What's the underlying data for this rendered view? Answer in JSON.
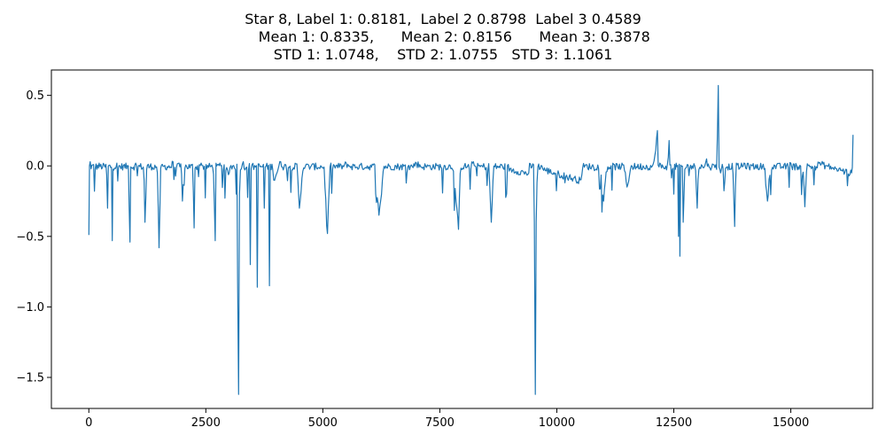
{
  "chart_data": {
    "type": "line",
    "title_lines": [
      "Star 8, Label 1: 0.8181,  Label 2 0.8798  Label 3 0.4589",
      "     Mean 1: 0.8335,      Mean 2: 0.8156      Mean 3: 0.3878",
      "STD 1: 1.0748,    STD 2: 1.0755   STD 3: 1.1061"
    ],
    "xlabel": "",
    "ylabel": "",
    "xlim": [
      -800,
      16750
    ],
    "ylim": [
      -1.72,
      0.68
    ],
    "grid": false,
    "line_color": "#1f77b4",
    "x_ticks": [
      0,
      2500,
      5000,
      7500,
      10000,
      12500,
      15000
    ],
    "x_tick_labels": [
      "0",
      "2500",
      "5000",
      "7500",
      "10000",
      "12500",
      "15000"
    ],
    "y_ticks": [
      0.5,
      0.0,
      -0.5,
      -1.0,
      -1.5
    ],
    "y_tick_labels": [
      "0.5",
      "0.0",
      "−0.5",
      "−1.0",
      "−1.5"
    ],
    "x_max": 16330,
    "keypoints": [
      [
        0,
        -0.49
      ],
      [
        30,
        0.03
      ],
      [
        120,
        -0.18
      ],
      [
        220,
        0.02
      ],
      [
        400,
        -0.3
      ],
      [
        500,
        -0.53
      ],
      [
        600,
        0.02
      ],
      [
        880,
        -0.54
      ],
      [
        1000,
        0.02
      ],
      [
        1200,
        -0.4
      ],
      [
        1500,
        -0.58
      ],
      [
        1800,
        0.03
      ],
      [
        2000,
        -0.25
      ],
      [
        2250,
        -0.44
      ],
      [
        2400,
        0.02
      ],
      [
        2700,
        -0.53
      ],
      [
        2800,
        0.02
      ],
      [
        3000,
        -0.05
      ],
      [
        3150,
        -0.2
      ],
      [
        3180,
        -0.82
      ],
      [
        3200,
        -1.62
      ],
      [
        3220,
        -0.2
      ],
      [
        3300,
        0.03
      ],
      [
        3450,
        -0.7
      ],
      [
        3600,
        -0.86
      ],
      [
        3750,
        -0.3
      ],
      [
        3860,
        -0.85
      ],
      [
        3950,
        -0.1
      ],
      [
        4100,
        0.03
      ],
      [
        4500,
        -0.3
      ],
      [
        5100,
        -0.48
      ],
      [
        5500,
        0.02
      ],
      [
        6200,
        -0.35
      ],
      [
        7000,
        0.02
      ],
      [
        7900,
        -0.45
      ],
      [
        8200,
        0.02
      ],
      [
        8600,
        -0.4
      ],
      [
        9000,
        -0.02
      ],
      [
        9400,
        -0.05
      ],
      [
        9520,
        -0.4
      ],
      [
        9540,
        -1.62
      ],
      [
        9560,
        -0.4
      ],
      [
        9700,
        -0.02
      ],
      [
        10500,
        -0.1
      ],
      [
        11000,
        -0.25
      ],
      [
        11500,
        -0.15
      ],
      [
        12150,
        0.25
      ],
      [
        12200,
        0.02
      ],
      [
        12400,
        0.18
      ],
      [
        12500,
        -0.2
      ],
      [
        12600,
        -0.5
      ],
      [
        12630,
        -0.64
      ],
      [
        12700,
        -0.4
      ],
      [
        13000,
        -0.3
      ],
      [
        13200,
        0.05
      ],
      [
        13450,
        0.57
      ],
      [
        13500,
        -0.05
      ],
      [
        13800,
        -0.43
      ],
      [
        14000,
        0.02
      ],
      [
        14500,
        -0.25
      ],
      [
        15000,
        0.02
      ],
      [
        15300,
        -0.29
      ],
      [
        15600,
        0.02
      ],
      [
        16300,
        -0.05
      ],
      [
        16330,
        0.22
      ]
    ]
  }
}
